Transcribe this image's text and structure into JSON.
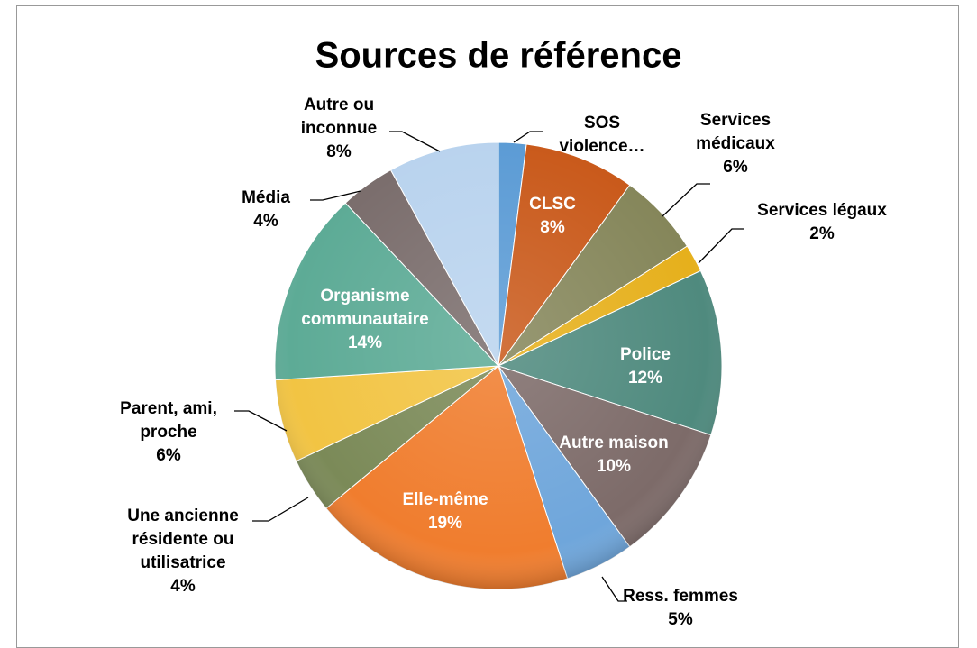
{
  "chart_data": {
    "type": "pie",
    "title": "Sources de référence",
    "categories": [
      "SOS violence…",
      "CLSC",
      "Services médicaux",
      "Services légaux",
      "Police",
      "Autre maison",
      "Ress. femmes",
      "Elle-même",
      "Une ancienne résidente ou utilisatrice",
      "Parent, ami, proche",
      "Organisme communautaire",
      "Média",
      "Autre ou inconnue"
    ],
    "values": [
      2,
      8,
      6,
      2,
      12,
      10,
      5,
      19,
      4,
      6,
      14,
      4,
      8
    ],
    "value_labels": [
      null,
      "8%",
      "6%",
      "2%",
      "12%",
      "10%",
      "5%",
      "19%",
      "4%",
      "6%",
      "14%",
      "4%",
      "8%"
    ],
    "colors": [
      "#5b9bd5",
      "#c9591a",
      "#85865a",
      "#e6b01c",
      "#4f8a7e",
      "#7d6b69",
      "#6fa6db",
      "#f07d2e",
      "#7b8a58",
      "#f2c443",
      "#5dab96",
      "#7a6d6c",
      "#b9d3ee"
    ]
  }
}
